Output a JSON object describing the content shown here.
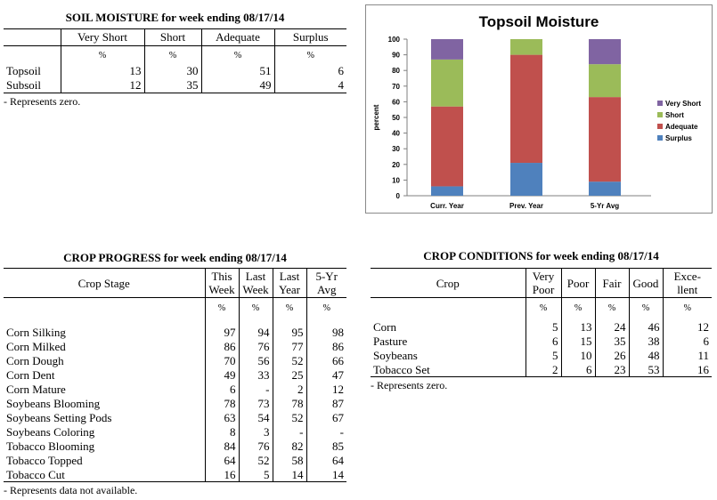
{
  "soil": {
    "title": "SOIL MOISTURE for week ending 08/17/14",
    "headers": [
      "Very Short",
      "Short",
      "Adequate",
      "Surplus"
    ],
    "unit": "%",
    "rows": [
      {
        "label": "Topsoil",
        "values": [
          "13",
          "30",
          "51",
          "6"
        ]
      },
      {
        "label": "Subsoil",
        "values": [
          "12",
          "35",
          "49",
          "4"
        ]
      }
    ],
    "note": "- Represents zero."
  },
  "chart_data": {
    "type": "bar",
    "stacked": true,
    "title": "Topsoil Moisture",
    "ylabel": "percent",
    "xlabel": "",
    "ylim": [
      0,
      100
    ],
    "yticks": [
      "0",
      "10",
      "20",
      "30",
      "40",
      "50",
      "60",
      "70",
      "80",
      "90",
      "100"
    ],
    "categories": [
      "Curr. Year",
      "Prev. Year",
      "5-Yr Avg"
    ],
    "series": [
      {
        "name": "Surplus",
        "color": "#4f81bd",
        "values": [
          6,
          21,
          9
        ]
      },
      {
        "name": "Adequate",
        "color": "#c0504d",
        "values": [
          51,
          69,
          54
        ]
      },
      {
        "name": "Short",
        "color": "#9bbb59",
        "values": [
          30,
          10,
          21
        ]
      },
      {
        "name": "Very Short",
        "color": "#8064a2",
        "values": [
          13,
          0,
          16
        ]
      }
    ],
    "legend_order": [
      "Very Short",
      "Short",
      "Adequate",
      "Surplus"
    ],
    "legend_position": "right",
    "grid": false
  },
  "progress": {
    "title": "CROP PROGRESS for week ending 08/17/14",
    "stage_header": "Crop Stage",
    "headers": [
      [
        "This",
        "Week"
      ],
      [
        "Last",
        "Week"
      ],
      [
        "Last",
        "Year"
      ],
      [
        "5-Yr",
        "Avg"
      ]
    ],
    "unit": "%",
    "rows": [
      {
        "label": "Corn Silking",
        "values": [
          "97",
          "94",
          "95",
          "98"
        ]
      },
      {
        "label": "Corn Milked",
        "values": [
          "86",
          "76",
          "77",
          "86"
        ]
      },
      {
        "label": "Corn Dough",
        "values": [
          "70",
          "56",
          "52",
          "66"
        ]
      },
      {
        "label": "Corn Dent",
        "values": [
          "49",
          "33",
          "25",
          "47"
        ]
      },
      {
        "label": "Corn Mature",
        "values": [
          "6",
          "-",
          "2",
          "12"
        ]
      },
      {
        "label": "Soybeans Blooming",
        "values": [
          "78",
          "73",
          "78",
          "87"
        ]
      },
      {
        "label": "Soybeans Setting Pods",
        "values": [
          "63",
          "54",
          "52",
          "67"
        ]
      },
      {
        "label": "Soybeans Coloring",
        "values": [
          "8",
          "3",
          "-",
          "-"
        ]
      },
      {
        "label": "Tobacco Blooming",
        "values": [
          "84",
          "76",
          "82",
          "85"
        ]
      },
      {
        "label": "Tobacco Topped",
        "values": [
          "64",
          "52",
          "58",
          "64"
        ]
      },
      {
        "label": "Tobacco Cut",
        "values": [
          "16",
          "5",
          "14",
          "14"
        ]
      }
    ],
    "note": "- Represents data not available."
  },
  "conditions": {
    "title": "CROP CONDITIONS for week ending 08/17/14",
    "crop_header": "Crop",
    "headers": [
      [
        "Very",
        "Poor"
      ],
      [
        "Poor"
      ],
      [
        "Fair"
      ],
      [
        "Good"
      ],
      [
        "Exce-",
        "llent"
      ]
    ],
    "unit": "%",
    "rows": [
      {
        "label": "Corn",
        "values": [
          "5",
          "13",
          "24",
          "46",
          "12"
        ]
      },
      {
        "label": "Pasture",
        "values": [
          "6",
          "15",
          "35",
          "38",
          "6"
        ]
      },
      {
        "label": "Soybeans",
        "values": [
          "5",
          "10",
          "26",
          "48",
          "11"
        ]
      },
      {
        "label": "Tobacco Set",
        "values": [
          "2",
          "6",
          "23",
          "53",
          "16"
        ]
      }
    ],
    "note": "- Represents zero."
  }
}
